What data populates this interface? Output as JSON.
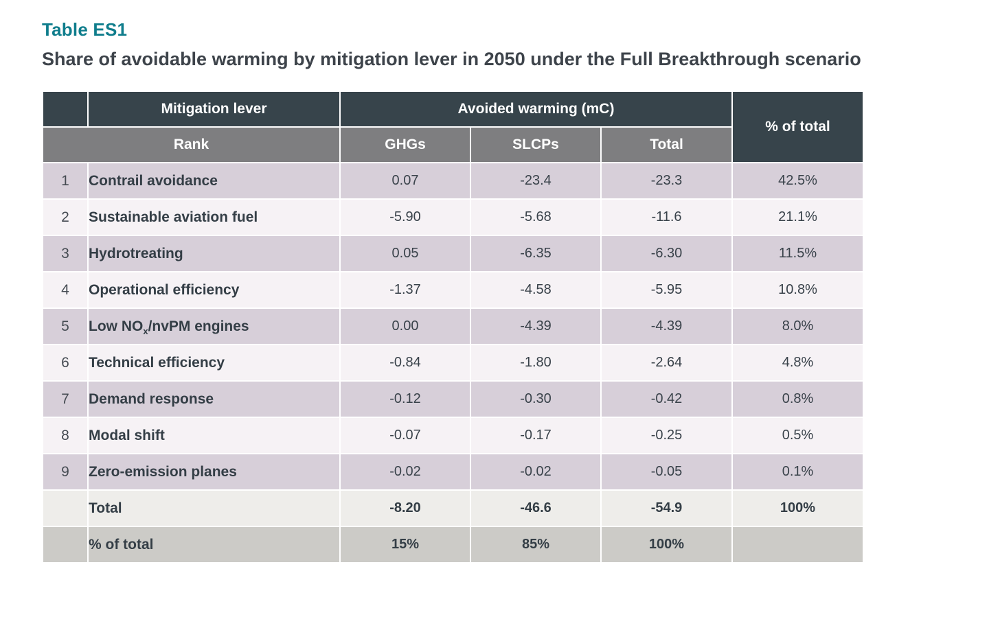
{
  "title": "Table ES1",
  "subtitle": "Share of avoidable warming by mitigation lever in 2050 under the Full Breakthrough scenario",
  "colors": {
    "accent_teal": "#0f7d8c",
    "header_dark": "#37444b",
    "header_gray": "#7e7e80",
    "row_lavender": "#d7cfd9",
    "row_light": "#f6f2f5",
    "row_total": "#eeedea",
    "row_percent": "#cccbc7",
    "text_dark": "#343e46"
  },
  "table": {
    "header": {
      "mitigation_lever": "Mitigation lever",
      "avoided_warming": "Avoided warming (mC)",
      "rank": "Rank",
      "ghgs": "GHGs",
      "slcps": "SLCPs",
      "total": "Total",
      "pct_of_total": "% of total"
    },
    "rows": [
      {
        "rank": "1",
        "lever": "Contrail avoidance",
        "ghgs": "0.07",
        "slcps": "-23.4",
        "total": "-23.3",
        "pct": "42.5%"
      },
      {
        "rank": "2",
        "lever": "Sustainable aviation fuel",
        "ghgs": "-5.90",
        "slcps": "-5.68",
        "total": "-11.6",
        "pct": "21.1%"
      },
      {
        "rank": "3",
        "lever": "Hydrotreating",
        "ghgs": "0.05",
        "slcps": "-6.35",
        "total": "-6.30",
        "pct": "11.5%"
      },
      {
        "rank": "4",
        "lever": "Operational efficiency",
        "ghgs": "-1.37",
        "slcps": "-4.58",
        "total": "-5.95",
        "pct": "10.8%"
      },
      {
        "rank": "5",
        "lever_pre": "Low NO",
        "lever_sub": "x",
        "lever_post": "/nvPM engines",
        "ghgs": "0.00",
        "slcps": "-4.39",
        "total": "-4.39",
        "pct": "8.0%"
      },
      {
        "rank": "6",
        "lever": "Technical efficiency",
        "ghgs": "-0.84",
        "slcps": "-1.80",
        "total": "-2.64",
        "pct": "4.8%"
      },
      {
        "rank": "7",
        "lever": "Demand response",
        "ghgs": "-0.12",
        "slcps": "-0.30",
        "total": "-0.42",
        "pct": "0.8%"
      },
      {
        "rank": "8",
        "lever": "Modal shift",
        "ghgs": "-0.07",
        "slcps": "-0.17",
        "total": "-0.25",
        "pct": "0.5%"
      },
      {
        "rank": "9",
        "lever": "Zero-emission planes",
        "ghgs": "-0.02",
        "slcps": "-0.02",
        "total": "-0.05",
        "pct": "0.1%"
      }
    ],
    "total_row": {
      "label": "Total",
      "ghgs": "-8.20",
      "slcps": "-46.6",
      "total": "-54.9",
      "pct": "100%"
    },
    "percent_row": {
      "label": "% of total",
      "ghgs": "15%",
      "slcps": "85%",
      "total": "100%",
      "pct": ""
    }
  },
  "chart_data": {
    "type": "table",
    "title": "Table ES1",
    "subtitle": "Share of avoidable warming by mitigation lever in 2050 under the Full Breakthrough scenario",
    "columns": [
      "Rank",
      "Mitigation lever",
      "GHGs",
      "SLCPs",
      "Total",
      "% of total"
    ],
    "column_groups": [
      {
        "label": "Avoided warming (mC)",
        "columns": [
          "GHGs",
          "SLCPs",
          "Total"
        ]
      }
    ],
    "rows": [
      [
        1,
        "Contrail avoidance",
        0.07,
        -23.4,
        -23.3,
        "42.5%"
      ],
      [
        2,
        "Sustainable aviation fuel",
        -5.9,
        -5.68,
        -11.6,
        "21.1%"
      ],
      [
        3,
        "Hydrotreating",
        0.05,
        -6.35,
        -6.3,
        "11.5%"
      ],
      [
        4,
        "Operational efficiency",
        -1.37,
        -4.58,
        -5.95,
        "10.8%"
      ],
      [
        5,
        "Low NOx/nvPM engines",
        0.0,
        -4.39,
        -4.39,
        "8.0%"
      ],
      [
        6,
        "Technical efficiency",
        -0.84,
        -1.8,
        -2.64,
        "4.8%"
      ],
      [
        7,
        "Demand response",
        -0.12,
        -0.3,
        -0.42,
        "0.8%"
      ],
      [
        8,
        "Modal shift",
        -0.07,
        -0.17,
        -0.25,
        "0.5%"
      ],
      [
        9,
        "Zero-emission planes",
        -0.02,
        -0.02,
        -0.05,
        "0.1%"
      ]
    ],
    "footer_rows": [
      [
        "",
        "Total",
        -8.2,
        -46.6,
        -54.9,
        "100%"
      ],
      [
        "",
        "% of total",
        "15%",
        "85%",
        "100%",
        ""
      ]
    ]
  }
}
